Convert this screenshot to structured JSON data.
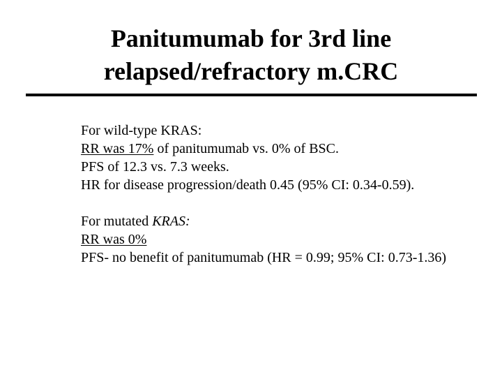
{
  "slide": {
    "title_lines": [
      "Panitumumab for 3rd line",
      "relapsed/refractory m.CRC"
    ],
    "wild_type": {
      "heading": "For wild-type KRAS:",
      "rr_underlined": "RR was 17%",
      "rr_rest": " of panitumumab vs. 0% of BSC.",
      "pfs": "PFS of 12.3 vs. 7.3 weeks.",
      "hr": "HR for disease progression/death 0.45 (95% CI: 0.34-0.59)."
    },
    "mutated": {
      "heading_prefix": "For mutated ",
      "heading_italic": "KRAS:",
      "rr_underlined": "RR was 0%",
      "pfs": "PFS- no benefit of panitumumab (HR = 0.99; 95% CI: 0.73-1.36)"
    }
  }
}
